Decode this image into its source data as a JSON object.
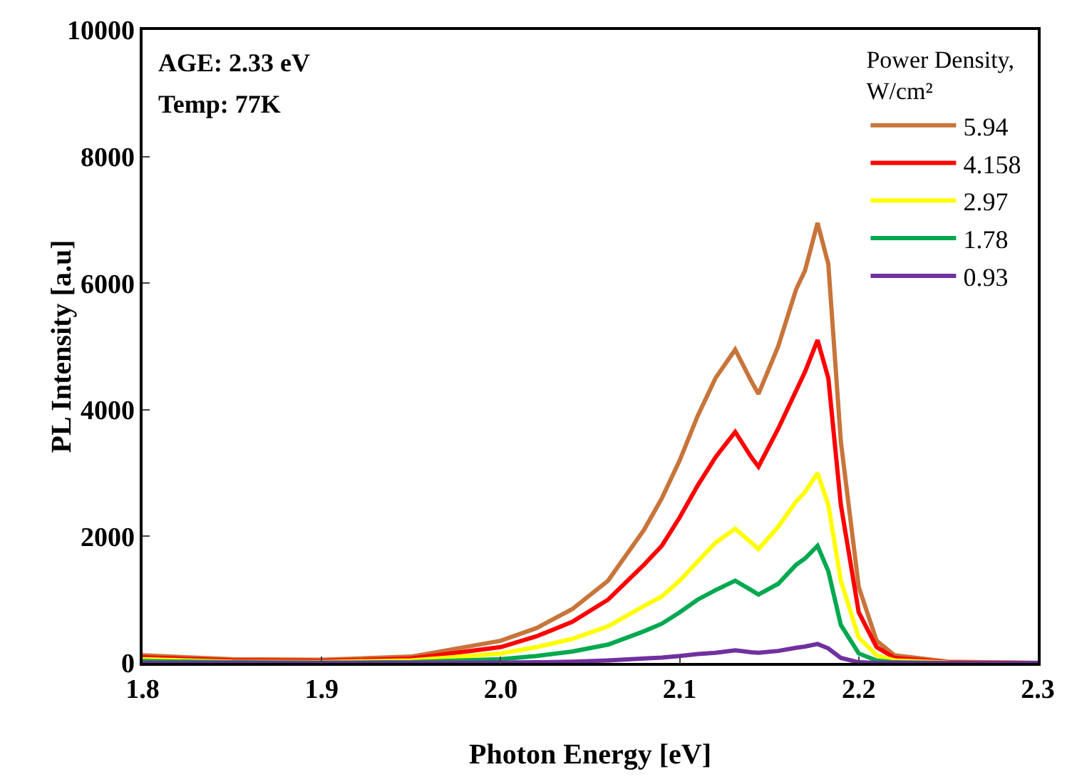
{
  "chart_data": {
    "type": "line",
    "xlabel": "Photon Energy [eV]",
    "ylabel": "PL Intensity [a.u]",
    "legend_title": "Power Density, W/cm²",
    "legend": "top right",
    "grid": false,
    "marker": "none",
    "line_style": "solid",
    "annotations": [
      "AGE: 2.33 eV",
      "Temp: 77K"
    ],
    "x": [
      1.8,
      1.85,
      1.9,
      1.95,
      2.0,
      2.02,
      2.04,
      2.06,
      2.08,
      2.09,
      2.1,
      2.11,
      2.12,
      2.131,
      2.14,
      2.144,
      2.155,
      2.165,
      2.17,
      2.177,
      2.183,
      2.19,
      2.2,
      2.21,
      2.22,
      2.25,
      2.3
    ],
    "xlim": [
      1.8,
      2.3
    ],
    "xticks": [
      {
        "value": 1.8,
        "label": "1.8"
      },
      {
        "value": 1.9,
        "label": "1.9"
      },
      {
        "value": 2.0,
        "label": "2.0"
      },
      {
        "value": 2.1,
        "label": "2.1"
      },
      {
        "value": 2.2,
        "label": "2.2"
      },
      {
        "value": 2.3,
        "label": "2.3"
      }
    ],
    "ylim": [
      0,
      10000
    ],
    "yticks": [
      0,
      2000,
      4000,
      6000,
      8000,
      10000
    ],
    "series": [
      {
        "name": "5.94",
        "color": "#c8743a",
        "values": [
          120,
          60,
          50,
          100,
          350,
          550,
          850,
          1300,
          2100,
          2600,
          3200,
          3900,
          4500,
          4950,
          4450,
          4250,
          5000,
          5900,
          6200,
          6950,
          6300,
          3500,
          1200,
          350,
          120,
          20,
          0
        ]
      },
      {
        "name": "4.158",
        "color": "#ff0000",
        "values": [
          90,
          40,
          30,
          70,
          250,
          420,
          650,
          1000,
          1550,
          1850,
          2300,
          2800,
          3250,
          3650,
          3250,
          3100,
          3700,
          4300,
          4600,
          5100,
          4500,
          2500,
          800,
          250,
          80,
          10,
          0
        ]
      },
      {
        "name": "2.97",
        "color": "#ffff00",
        "values": [
          60,
          20,
          15,
          40,
          150,
          250,
          380,
          580,
          900,
          1050,
          1300,
          1600,
          1900,
          2120,
          1900,
          1800,
          2150,
          2550,
          2700,
          3000,
          2500,
          1300,
          400,
          120,
          40,
          5,
          0
        ]
      },
      {
        "name": "1.78",
        "color": "#00a84f",
        "values": [
          30,
          10,
          5,
          15,
          60,
          110,
          180,
          290,
          500,
          620,
          800,
          1000,
          1150,
          1300,
          1150,
          1080,
          1250,
          1550,
          1650,
          1850,
          1450,
          600,
          150,
          40,
          10,
          0,
          0
        ]
      },
      {
        "name": "0.93",
        "color": "#7030a0",
        "values": [
          0,
          0,
          0,
          0,
          5,
          10,
          20,
          40,
          70,
          85,
          110,
          140,
          160,
          200,
          170,
          160,
          190,
          240,
          260,
          300,
          230,
          80,
          10,
          0,
          0,
          0,
          0
        ]
      }
    ]
  }
}
